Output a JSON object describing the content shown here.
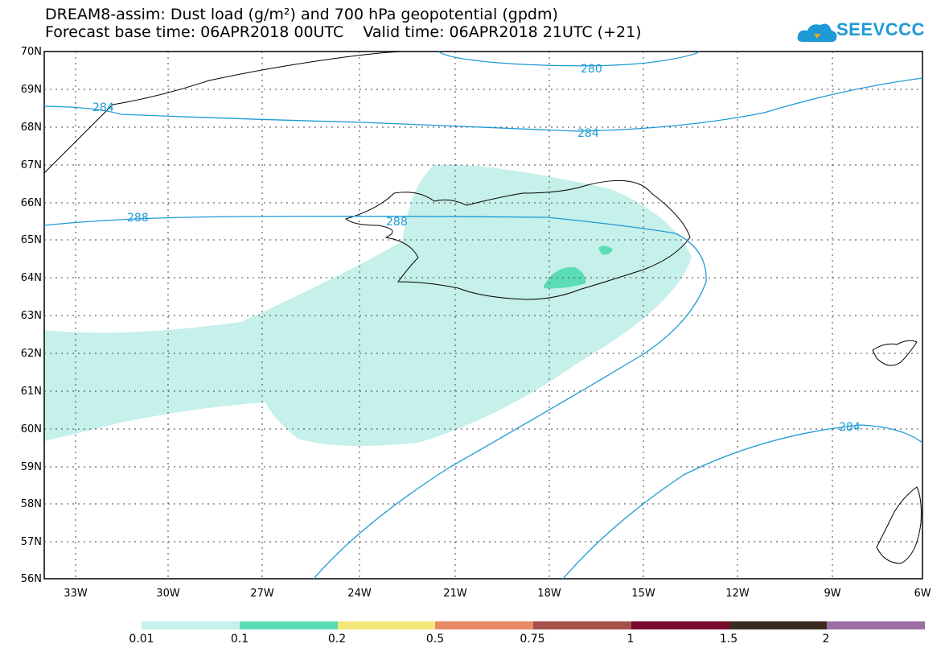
{
  "header": {
    "line1": "DREAM8-assim: Dust load (g/m²) and 700 hPa geopotential (gpdm)",
    "line2": "Forecast base time: 06APR2018 00UTC    Valid time: 06APR2018 21UTC (+21)"
  },
  "logo": {
    "text": "SEEVCCC",
    "icon": "cloud-icon"
  },
  "map": {
    "lat_labels": [
      "70N",
      "69N",
      "68N",
      "67N",
      "66N",
      "65N",
      "64N",
      "63N",
      "62N",
      "61N",
      "60N",
      "59N",
      "58N",
      "57N",
      "56N"
    ],
    "lon_labels": [
      "33W",
      "30W",
      "27W",
      "24W",
      "21W",
      "18W",
      "15W",
      "12W",
      "9W",
      "6W"
    ],
    "contour_labels": [
      "280",
      "284",
      "284",
      "288",
      "288",
      "284"
    ],
    "colors": {
      "contour": "#1e9ad6",
      "dust_low": "#c6f0ea",
      "dust_mid": "#5bdcb4"
    }
  },
  "colorbar": {
    "labels": [
      "0.01",
      "0.1",
      "0.2",
      "0.5",
      "0.75",
      "1",
      "1.5",
      "2"
    ],
    "colors": [
      "#c6f0ea",
      "#5bdcb4",
      "#f5e67a",
      "#e88a66",
      "#a5514a",
      "#7a0b2e",
      "#3a2a1e",
      "#9b6fa3"
    ]
  }
}
